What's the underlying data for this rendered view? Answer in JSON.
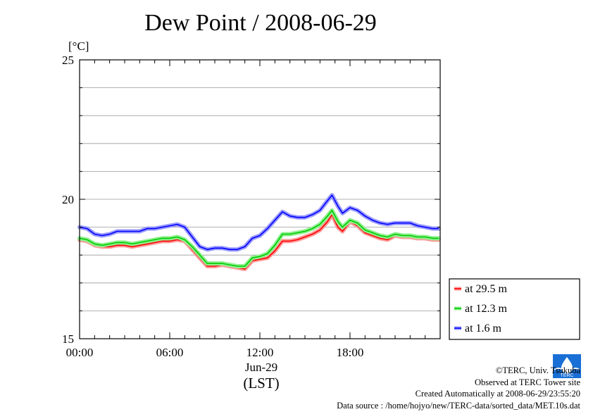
{
  "chart_data": {
    "type": "line",
    "title": "Dew Point / 2008-06-29",
    "ylabel": "[°C]",
    "xlabel_date": "Jun-29",
    "xlabel_tz": "(LST)",
    "x_unit": "hours (LST)",
    "xlim": [
      0,
      24
    ],
    "ylim": [
      15,
      25
    ],
    "x_ticks": [
      0,
      6,
      12,
      18
    ],
    "x_tick_labels": [
      "00:00",
      "06:00",
      "12:00",
      "18:00"
    ],
    "y_tick_labels": [
      "15",
      "20",
      "25"
    ],
    "grid": true,
    "legend_position": "lower-right, outside plot",
    "series": [
      {
        "name": "at 29.5 m",
        "color": "#ff0000",
        "glow": "#ff9a9a",
        "points": [
          [
            0,
            18.55
          ],
          [
            0.5,
            18.5
          ],
          [
            1,
            18.35
          ],
          [
            1.5,
            18.3
          ],
          [
            2,
            18.3
          ],
          [
            2.5,
            18.35
          ],
          [
            3,
            18.35
          ],
          [
            3.5,
            18.3
          ],
          [
            4,
            18.35
          ],
          [
            4.5,
            18.4
          ],
          [
            5,
            18.45
          ],
          [
            5.5,
            18.5
          ],
          [
            6,
            18.5
          ],
          [
            6.5,
            18.55
          ],
          [
            7,
            18.5
          ],
          [
            7.5,
            18.2
          ],
          [
            8,
            17.9
          ],
          [
            8.5,
            17.6
          ],
          [
            9,
            17.6
          ],
          [
            9.5,
            17.65
          ],
          [
            10,
            17.6
          ],
          [
            10.5,
            17.55
          ],
          [
            11,
            17.5
          ],
          [
            11.5,
            17.8
          ],
          [
            12,
            17.85
          ],
          [
            12.5,
            17.9
          ],
          [
            13,
            18.15
          ],
          [
            13.5,
            18.5
          ],
          [
            14,
            18.5
          ],
          [
            14.5,
            18.55
          ],
          [
            15,
            18.65
          ],
          [
            15.5,
            18.75
          ],
          [
            16,
            18.9
          ],
          [
            16.5,
            19.2
          ],
          [
            16.8,
            19.45
          ],
          [
            17.2,
            19.0
          ],
          [
            17.5,
            18.85
          ],
          [
            18,
            19.2
          ],
          [
            18.5,
            19.05
          ],
          [
            19,
            18.8
          ],
          [
            19.5,
            18.7
          ],
          [
            20,
            18.6
          ],
          [
            20.5,
            18.55
          ],
          [
            21,
            18.7
          ],
          [
            21.5,
            18.65
          ],
          [
            22,
            18.65
          ],
          [
            22.5,
            18.6
          ],
          [
            23,
            18.6
          ],
          [
            23.5,
            18.55
          ],
          [
            23.9,
            18.55
          ]
        ]
      },
      {
        "name": "at 12.3 m",
        "color": "#00cc00",
        "glow": "#8ef08e",
        "points": [
          [
            0,
            18.6
          ],
          [
            0.5,
            18.55
          ],
          [
            1,
            18.4
          ],
          [
            1.5,
            18.35
          ],
          [
            2,
            18.4
          ],
          [
            2.5,
            18.45
          ],
          [
            3,
            18.45
          ],
          [
            3.5,
            18.4
          ],
          [
            4,
            18.45
          ],
          [
            4.5,
            18.5
          ],
          [
            5,
            18.55
          ],
          [
            5.5,
            18.6
          ],
          [
            6,
            18.6
          ],
          [
            6.5,
            18.65
          ],
          [
            7,
            18.55
          ],
          [
            7.5,
            18.3
          ],
          [
            8,
            18.0
          ],
          [
            8.5,
            17.7
          ],
          [
            9,
            17.7
          ],
          [
            9.5,
            17.7
          ],
          [
            10,
            17.65
          ],
          [
            10.5,
            17.6
          ],
          [
            11,
            17.6
          ],
          [
            11.5,
            17.9
          ],
          [
            12,
            17.95
          ],
          [
            12.5,
            18.05
          ],
          [
            13,
            18.35
          ],
          [
            13.5,
            18.75
          ],
          [
            14,
            18.75
          ],
          [
            14.5,
            18.8
          ],
          [
            15,
            18.85
          ],
          [
            15.5,
            18.95
          ],
          [
            16,
            19.1
          ],
          [
            16.5,
            19.4
          ],
          [
            16.8,
            19.6
          ],
          [
            17.2,
            19.2
          ],
          [
            17.5,
            19.0
          ],
          [
            18,
            19.25
          ],
          [
            18.5,
            19.15
          ],
          [
            19,
            18.9
          ],
          [
            19.5,
            18.8
          ],
          [
            20,
            18.7
          ],
          [
            20.5,
            18.65
          ],
          [
            21,
            18.75
          ],
          [
            21.5,
            18.7
          ],
          [
            22,
            18.7
          ],
          [
            22.5,
            18.65
          ],
          [
            23,
            18.65
          ],
          [
            23.5,
            18.6
          ],
          [
            23.9,
            18.6
          ]
        ]
      },
      {
        "name": "at 1.6 m",
        "color": "#0000ff",
        "glow": "#9a9aff",
        "points": [
          [
            0,
            19.0
          ],
          [
            0.5,
            18.95
          ],
          [
            1,
            18.75
          ],
          [
            1.5,
            18.7
          ],
          [
            2,
            18.75
          ],
          [
            2.5,
            18.85
          ],
          [
            3,
            18.85
          ],
          [
            3.5,
            18.85
          ],
          [
            4,
            18.85
          ],
          [
            4.5,
            18.95
          ],
          [
            5,
            18.95
          ],
          [
            5.5,
            19.0
          ],
          [
            6,
            19.05
          ],
          [
            6.5,
            19.1
          ],
          [
            7,
            19.0
          ],
          [
            7.5,
            18.65
          ],
          [
            8,
            18.3
          ],
          [
            8.5,
            18.2
          ],
          [
            9,
            18.25
          ],
          [
            9.5,
            18.25
          ],
          [
            10,
            18.2
          ],
          [
            10.5,
            18.2
          ],
          [
            11,
            18.3
          ],
          [
            11.5,
            18.6
          ],
          [
            12,
            18.7
          ],
          [
            12.5,
            18.95
          ],
          [
            13,
            19.25
          ],
          [
            13.5,
            19.55
          ],
          [
            14,
            19.4
          ],
          [
            14.5,
            19.35
          ],
          [
            15,
            19.35
          ],
          [
            15.5,
            19.45
          ],
          [
            16,
            19.6
          ],
          [
            16.5,
            19.95
          ],
          [
            16.8,
            20.15
          ],
          [
            17.2,
            19.75
          ],
          [
            17.5,
            19.5
          ],
          [
            18,
            19.7
          ],
          [
            18.5,
            19.6
          ],
          [
            19,
            19.4
          ],
          [
            19.5,
            19.25
          ],
          [
            20,
            19.15
          ],
          [
            20.5,
            19.1
          ],
          [
            21,
            19.15
          ],
          [
            21.5,
            19.15
          ],
          [
            22,
            19.15
          ],
          [
            22.5,
            19.05
          ],
          [
            23,
            19.0
          ],
          [
            23.5,
            18.95
          ],
          [
            23.9,
            18.95
          ]
        ]
      }
    ]
  },
  "credits": {
    "copyright": "©TERC, Univ. Tsukuba",
    "observed": "Observed at TERC Tower site",
    "created": "Created Automatically at 2008-06-29/23:55:20",
    "source": "Data source : /home/hojyo/new/TERC-data/sorted_data/MET.10s.dat",
    "logo_text": "TERC"
  }
}
